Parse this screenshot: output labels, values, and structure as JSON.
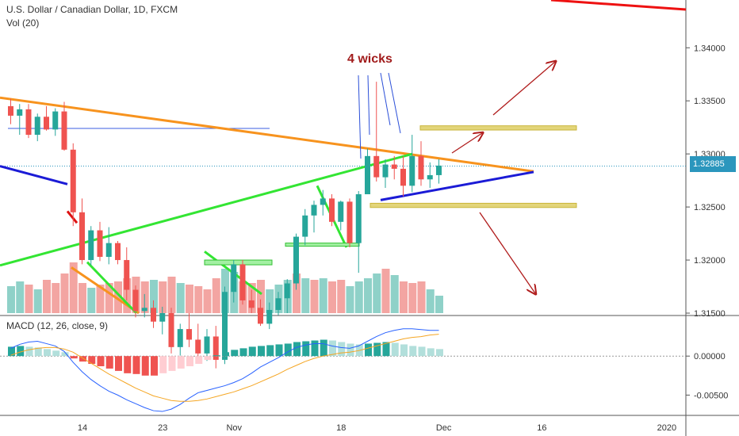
{
  "header": {
    "title": "U.S. Dollar / Canadian Dollar, 1D, FXCM",
    "volume_label": "Vol (20)",
    "macd_label": "MACD (12, 26, close, 9)"
  },
  "annotation": "4 wicks",
  "last_price": "1.32885",
  "colors": {
    "up": "#26a69a",
    "down": "#ef5350",
    "vol_up": "#8fd1c8",
    "vol_down": "#f3a5a2",
    "trend_orange": "#f7931e",
    "trend_green": "#33e533",
    "trend_blue": "#1b1bd6",
    "arrow": "#b01c1c",
    "zone": "#e3d57a",
    "macd_line": "#2962ff",
    "signal_line": "#f5a623"
  },
  "chart_data": {
    "type": "candlestick",
    "title": "U.S. Dollar / Canadian Dollar, 1D, FXCM",
    "price_axis": {
      "ticks": [
        "1.34000",
        "1.33500",
        "1.33000",
        "1.32500",
        "1.32000",
        "1.31500"
      ],
      "range": [
        1.315,
        1.3445
      ]
    },
    "macd_axis": {
      "ticks": [
        "0.00000",
        "-0.00500"
      ],
      "range": [
        -0.0074,
        0.005
      ]
    },
    "x_ticks": [
      "14",
      "23",
      "Nov",
      "18",
      "Dec",
      "16",
      "2020"
    ],
    "candles": [
      [
        1.3345,
        1.3352,
        1.3328,
        1.3336
      ],
      [
        1.3336,
        1.3347,
        1.3318,
        1.3342
      ],
      [
        1.3342,
        1.3347,
        1.3315,
        1.3318
      ],
      [
        1.3318,
        1.3338,
        1.3312,
        1.3335
      ],
      [
        1.3335,
        1.3345,
        1.3322,
        1.3323
      ],
      [
        1.3323,
        1.3343,
        1.3317,
        1.334
      ],
      [
        1.334,
        1.3349,
        1.3303,
        1.3304
      ],
      [
        1.3304,
        1.331,
        1.3232,
        1.3245
      ],
      [
        1.3245,
        1.3258,
        1.3196,
        1.32
      ],
      [
        1.32,
        1.3232,
        1.3195,
        1.3228
      ],
      [
        1.3228,
        1.3236,
        1.3199,
        1.3203
      ],
      [
        1.3203,
        1.3231,
        1.3196,
        1.3216
      ],
      [
        1.3216,
        1.3218,
        1.3196,
        1.32
      ],
      [
        1.32,
        1.3212,
        1.3162,
        1.3172
      ],
      [
        1.3172,
        1.3176,
        1.3146,
        1.3152
      ],
      [
        1.3152,
        1.3168,
        1.3146,
        1.3155
      ],
      [
        1.3155,
        1.3162,
        1.3136,
        1.3142
      ],
      [
        1.3142,
        1.3156,
        1.313,
        1.315
      ],
      [
        1.315,
        1.3155,
        1.3112,
        1.3118
      ],
      [
        1.3118,
        1.314,
        1.311,
        1.3135
      ],
      [
        1.3135,
        1.315,
        1.3118,
        1.3125
      ],
      [
        1.3125,
        1.314,
        1.3105,
        1.3112
      ],
      [
        1.3112,
        1.3135,
        1.3105,
        1.3128
      ],
      [
        1.3128,
        1.3138,
        1.3098,
        1.3106
      ],
      [
        1.3106,
        1.3175,
        1.3102,
        1.317
      ],
      [
        1.317,
        1.32,
        1.316,
        1.3196
      ],
      [
        1.3196,
        1.32,
        1.3158,
        1.3162
      ],
      [
        1.3162,
        1.3172,
        1.315,
        1.3155
      ],
      [
        1.3155,
        1.3163,
        1.3138,
        1.314
      ],
      [
        1.314,
        1.316,
        1.3135,
        1.3153
      ],
      [
        1.3153,
        1.317,
        1.3148,
        1.3164
      ],
      [
        1.3164,
        1.3182,
        1.315,
        1.3178
      ],
      [
        1.3178,
        1.3225,
        1.3172,
        1.3222
      ],
      [
        1.3222,
        1.3248,
        1.3214,
        1.3242
      ],
      [
        1.3242,
        1.3256,
        1.3226,
        1.3252
      ],
      [
        1.3252,
        1.3266,
        1.3242,
        1.3258
      ],
      [
        1.3258,
        1.3262,
        1.3232,
        1.3236
      ],
      [
        1.3236,
        1.3256,
        1.3228,
        1.3255
      ],
      [
        1.3255,
        1.3258,
        1.3212,
        1.3216
      ],
      [
        1.3216,
        1.3265,
        1.3188,
        1.3262
      ],
      [
        1.3262,
        1.3305,
        1.3262,
        1.3298
      ],
      [
        1.3298,
        1.3368,
        1.3274,
        1.3278
      ],
      [
        1.3278,
        1.3295,
        1.3268,
        1.329
      ],
      [
        1.329,
        1.3298,
        1.3276,
        1.3286
      ],
      [
        1.3286,
        1.3298,
        1.326,
        1.327
      ],
      [
        1.327,
        1.3318,
        1.3264,
        1.3298
      ],
      [
        1.3298,
        1.3312,
        1.327,
        1.3276
      ],
      [
        1.3276,
        1.3292,
        1.3268,
        1.328
      ],
      [
        1.328,
        1.3295,
        1.3272,
        1.3289
      ]
    ],
    "volume": [
      [
        34,
        "up"
      ],
      [
        40,
        "up"
      ],
      [
        36,
        "down"
      ],
      [
        30,
        "up"
      ],
      [
        42,
        "down"
      ],
      [
        38,
        "down"
      ],
      [
        50,
        "down"
      ],
      [
        64,
        "down"
      ],
      [
        38,
        "down"
      ],
      [
        32,
        "up"
      ],
      [
        36,
        "down"
      ],
      [
        38,
        "down"
      ],
      [
        40,
        "down"
      ],
      [
        44,
        "down"
      ],
      [
        46,
        "down"
      ],
      [
        40,
        "down"
      ],
      [
        42,
        "up"
      ],
      [
        40,
        "down"
      ],
      [
        46,
        "down"
      ],
      [
        38,
        "up"
      ],
      [
        36,
        "down"
      ],
      [
        34,
        "down"
      ],
      [
        30,
        "down"
      ],
      [
        44,
        "down"
      ],
      [
        56,
        "up"
      ],
      [
        52,
        "up"
      ],
      [
        40,
        "down"
      ],
      [
        38,
        "down"
      ],
      [
        42,
        "down"
      ],
      [
        30,
        "up"
      ],
      [
        36,
        "up"
      ],
      [
        42,
        "up"
      ],
      [
        50,
        "down"
      ],
      [
        44,
        "up"
      ],
      [
        42,
        "down"
      ],
      [
        44,
        "up"
      ],
      [
        40,
        "down"
      ],
      [
        42,
        "down"
      ],
      [
        34,
        "up"
      ],
      [
        40,
        "up"
      ],
      [
        44,
        "up"
      ],
      [
        50,
        "up"
      ],
      [
        56,
        "down"
      ],
      [
        48,
        "up"
      ],
      [
        40,
        "down"
      ],
      [
        38,
        "down"
      ],
      [
        40,
        "down"
      ],
      [
        30,
        "up"
      ],
      [
        22,
        "up"
      ]
    ],
    "macd_hist": [
      0.0012,
      0.0013,
      0.0012,
      0.0011,
      0.0009,
      0.0007,
      0.0005,
      -0.0003,
      -0.0007,
      -0.001,
      -0.0013,
      -0.0016,
      -0.0019,
      -0.0022,
      -0.0023,
      -0.0025,
      -0.0025,
      -0.0022,
      -0.0019,
      -0.0016,
      -0.0013,
      -0.001,
      -0.0005,
      0.0001,
      0.0005,
      0.0008,
      0.001,
      0.0012,
      0.0013,
      0.0014,
      0.0015,
      0.0016,
      0.0018,
      0.0019,
      0.002,
      0.0021,
      0.002,
      0.0018,
      0.0016,
      0.0015,
      0.0016,
      0.0017,
      0.0018,
      0.0017,
      0.0015,
      0.0013,
      0.0012,
      0.001,
      0.0009
    ],
    "macd_line": [
      0.001,
      0.0015,
      0.0018,
      0.0019,
      0.0016,
      0.0013,
      0.0006,
      -0.0008,
      -0.002,
      -0.003,
      -0.0038,
      -0.0045,
      -0.005,
      -0.0056,
      -0.0061,
      -0.0066,
      -0.007,
      -0.0071,
      -0.0068,
      -0.0062,
      -0.0054,
      -0.0047,
      -0.0044,
      -0.0041,
      -0.0038,
      -0.0034,
      -0.0029,
      -0.0022,
      -0.0014,
      -0.0008,
      -0.0002,
      0.0005,
      0.0011,
      0.0014,
      0.0016,
      0.0016,
      0.0013,
      0.0011,
      0.001,
      0.0013,
      0.0019,
      0.0025,
      0.003,
      0.0033,
      0.0035,
      0.0035,
      0.0034,
      0.0033,
      0.0033
    ],
    "signal_line": [
      0.0001,
      0.0005,
      0.0008,
      0.001,
      0.0011,
      0.0011,
      0.0009,
      0.0005,
      -0.0002,
      -0.0009,
      -0.0016,
      -0.0023,
      -0.0029,
      -0.0035,
      -0.0041,
      -0.0046,
      -0.0051,
      -0.0054,
      -0.0057,
      -0.0058,
      -0.0058,
      -0.0057,
      -0.0055,
      -0.0052,
      -0.0049,
      -0.0046,
      -0.0042,
      -0.0038,
      -0.0033,
      -0.0028,
      -0.0023,
      -0.0017,
      -0.0012,
      -0.0007,
      -0.0003,
      0.0,
      0.0002,
      0.0004,
      0.0005,
      0.0007,
      0.001,
      0.0013,
      0.0016,
      0.0019,
      0.0022,
      0.0024,
      0.0025,
      0.0027,
      0.0028
    ]
  }
}
